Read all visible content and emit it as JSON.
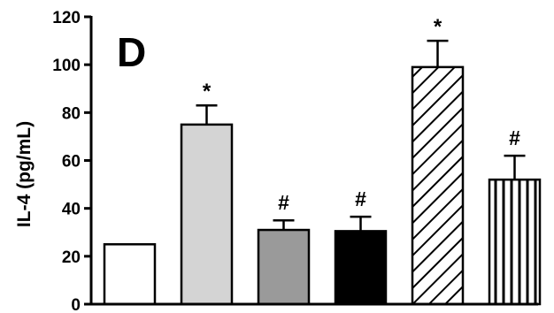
{
  "chart_data": {
    "type": "bar",
    "panel_label": "D",
    "ylabel": "IL-4 (pg/mL)",
    "ylim": [
      0,
      120
    ],
    "yticks": [
      0,
      20,
      40,
      60,
      80,
      100,
      120
    ],
    "grid": false,
    "legend": "none",
    "bars": [
      {
        "value": 25,
        "error": 0,
        "annotation": "",
        "fill": "white",
        "color": "#ffffff"
      },
      {
        "value": 75,
        "error": 8,
        "annotation": "*",
        "fill": "solid",
        "color": "#d4d4d4"
      },
      {
        "value": 31,
        "error": 4,
        "annotation": "#",
        "fill": "solid",
        "color": "#9a9a9a"
      },
      {
        "value": 30.5,
        "error": 6,
        "annotation": "#",
        "fill": "solid",
        "color": "#000000"
      },
      {
        "value": 99,
        "error": 11,
        "annotation": "*",
        "fill": "diagonal-hatch",
        "color": "#000000"
      },
      {
        "value": 52,
        "error": 10,
        "annotation": "#",
        "fill": "vertical-hatch",
        "color": "#000000"
      }
    ]
  }
}
